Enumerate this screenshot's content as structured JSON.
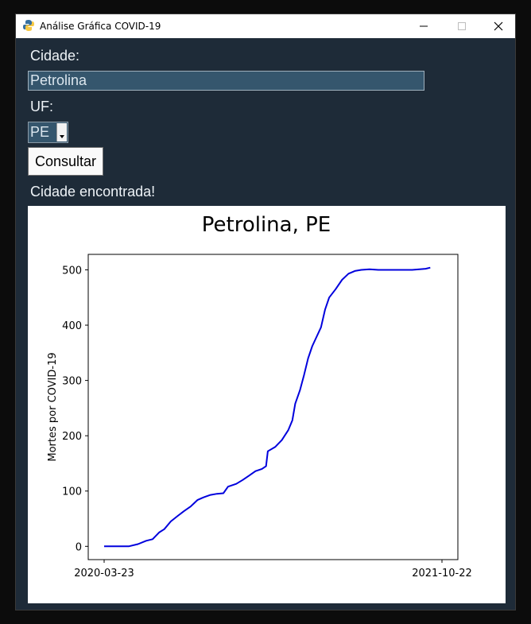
{
  "window": {
    "title": "Análise Gráfica COVID-19",
    "controls": {
      "minimize": "minimize-icon",
      "maximize": "maximize-icon",
      "close": "close-icon"
    }
  },
  "form": {
    "cidade_label": "Cidade:",
    "cidade_value": "Petrolina",
    "uf_label": "UF:",
    "uf_selected": "PE",
    "consultar_label": "Consultar",
    "status": "Cidade encontrada!"
  },
  "colors": {
    "window_bg": "#1e2b38",
    "input_bg": "#35566d",
    "line": "#0000dd"
  },
  "chart_data": {
    "type": "line",
    "title": "Petrolina, PE",
    "xlabel": "",
    "ylabel": "Mortes por COVID-19",
    "x_ticks": [
      "2020-03-23",
      "2021-10-22"
    ],
    "y_ticks": [
      0,
      100,
      200,
      300,
      400,
      500
    ],
    "xlim": [
      "2020-03-23",
      "2021-10-22"
    ],
    "ylim": [
      -24,
      528
    ],
    "grid": false,
    "series": [
      {
        "points": [
          [
            "2020-03-23",
            0
          ],
          [
            "2020-05-04",
            0
          ],
          [
            "2020-05-20",
            4
          ],
          [
            "2020-06-03",
            10
          ],
          [
            "2020-06-14",
            13
          ],
          [
            "2020-06-25",
            25
          ],
          [
            "2020-07-04",
            31
          ],
          [
            "2020-07-15",
            45
          ],
          [
            "2020-07-27",
            55
          ],
          [
            "2020-08-07",
            64
          ],
          [
            "2020-08-18",
            72
          ],
          [
            "2020-08-30",
            84
          ],
          [
            "2020-09-10",
            89
          ],
          [
            "2020-09-21",
            93
          ],
          [
            "2020-10-02",
            95
          ],
          [
            "2020-10-13",
            96
          ],
          [
            "2020-10-21",
            108
          ],
          [
            "2020-11-04",
            113
          ],
          [
            "2020-11-15",
            120
          ],
          [
            "2020-11-26",
            128
          ],
          [
            "2020-12-07",
            136
          ],
          [
            "2020-12-18",
            140
          ],
          [
            "2020-12-25",
            145
          ],
          [
            "2020-12-28",
            172
          ],
          [
            "2021-01-10",
            180
          ],
          [
            "2021-01-21",
            192
          ],
          [
            "2021-02-01",
            210
          ],
          [
            "2021-02-08",
            228
          ],
          [
            "2021-02-13",
            258
          ],
          [
            "2021-02-21",
            282
          ],
          [
            "2021-02-28",
            310
          ],
          [
            "2021-03-07",
            340
          ],
          [
            "2021-03-14",
            362
          ],
          [
            "2021-03-22",
            380
          ],
          [
            "2021-03-29",
            396
          ],
          [
            "2021-04-05",
            428
          ],
          [
            "2021-04-12",
            450
          ],
          [
            "2021-04-23",
            465
          ],
          [
            "2021-05-04",
            482
          ],
          [
            "2021-05-15",
            493
          ],
          [
            "2021-05-26",
            498
          ],
          [
            "2021-06-06",
            500
          ],
          [
            "2021-06-20",
            501
          ],
          [
            "2021-07-05",
            500
          ],
          [
            "2021-08-01",
            500
          ],
          [
            "2021-09-01",
            500
          ],
          [
            "2021-09-24",
            502
          ],
          [
            "2021-10-02",
            504
          ]
        ]
      }
    ]
  }
}
